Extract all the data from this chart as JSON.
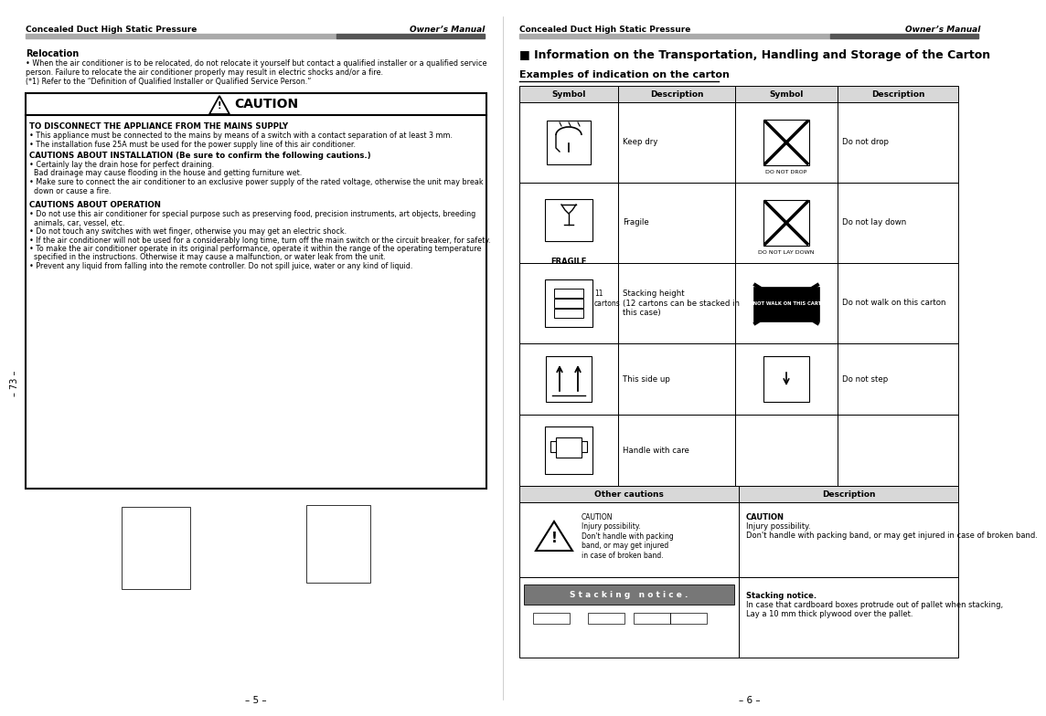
{
  "page_bg": "#ffffff",
  "left_header_left": "Concealed Duct High Static Pressure",
  "left_header_right": "Owner’s Manual",
  "right_header_left": "Concealed Duct High Static Pressure",
  "right_header_right": "Owner’s Manual",
  "left_footer": "– 5 –",
  "right_footer": "– 6 –",
  "left_section_title": "Relocation",
  "reloc_bullet": "When the air conditioner is to be relocated, do not relocate it yourself but contact a qualified installer or a qualified service\nperson. Failure to relocate the air conditioner properly may result in electric shocks and/or a fire.",
  "reloc_note": "(*1) Refer to the “Definition of Qualified Installer or Qualified Service Person.”",
  "caution_title": "CAUTION",
  "sec1_heading": "TO DISCONNECT THE APPLIANCE FROM THE MAINS SUPPLY",
  "sec1_bullets": [
    "• This appliance must be connected to the mains by means of a switch with a contact separation of at least 3 mm.",
    "• The installation fuse 25A must be used for the power supply line of this air conditioner."
  ],
  "sec2_heading": "CAUTIONS ABOUT INSTALLATION (Be sure to confirm the following cautions.)",
  "sec2_bullets": [
    "• Certainly lay the drain hose for perfect draining.",
    "  Bad drainage may cause flooding in the house and getting furniture wet.",
    "• Make sure to connect the air conditioner to an exclusive power supply of the rated voltage, otherwise the unit may break",
    "  down or cause a fire."
  ],
  "sec3_heading": "CAUTIONS ABOUT OPERATION",
  "sec3_bullets": [
    "• Do not use this air conditioner for special purpose such as preserving food, precision instruments, art objects, breeding",
    "  animals, car, vessel, etc.",
    "• Do not touch any switches with wet finger, otherwise you may get an electric shock.",
    "• If the air conditioner will not be used for a considerably long time, turn off the main switch or the circuit breaker, for safety.",
    "• To make the air conditioner operate in its original performance, operate it within the range of the operating temperature",
    "  specified in the instructions. Otherwise it may cause a malfunction, or water leak from the unit.",
    "• Prevent any liquid from falling into the remote controller. Do not spill juice, water or any kind of liquid."
  ],
  "page73": "– 73 –",
  "right_main_title": "■ Information on the Transportation, Handling and Storage of the Carton",
  "carton_section_title": "Examples of indication on the carton",
  "table_headers": [
    "Symbol",
    "Description",
    "Symbol",
    "Description"
  ],
  "desc_left": [
    "Keep dry",
    "Fragile",
    "Stacking height\n(12 cartons can be stacked in\nthis case)",
    "This side up",
    "Handle with care"
  ],
  "desc_right": [
    "Do not drop",
    "Do not lay down",
    "Do not walk on this carton",
    "Do not step",
    ""
  ],
  "other_cautions_header": "Other cautions",
  "other_cautions_desc_header": "Description",
  "caution_icon_text": "CAUTION\nInjury possibility.\nDon't handle with packing\nband, or may get injured\nin case of broken band.",
  "caution_desc_bold": "CAUTION",
  "caution_desc_text": "Injury possibility.\nDon't handle with packing band, or may get injured in case of broken band.",
  "stacking_notice_label": "S t a c k i n g   n o t i c e .",
  "stacking_notice_bold": "Stacking notice.",
  "stacking_notice_desc": "In case that cardboard boxes protrude out of pallet when stacking,\nLay a 10 mm thick plywood over the pallet.",
  "do_not_drop_label": "DO NOT DROP",
  "do_not_lay_label": "DO NOT LAY DOWN",
  "do_not_walk_label": "DO NOT WALK ON THIS CARTON",
  "stacking_cartons": "11\ncartons",
  "fragile_label": "FRAGILE"
}
